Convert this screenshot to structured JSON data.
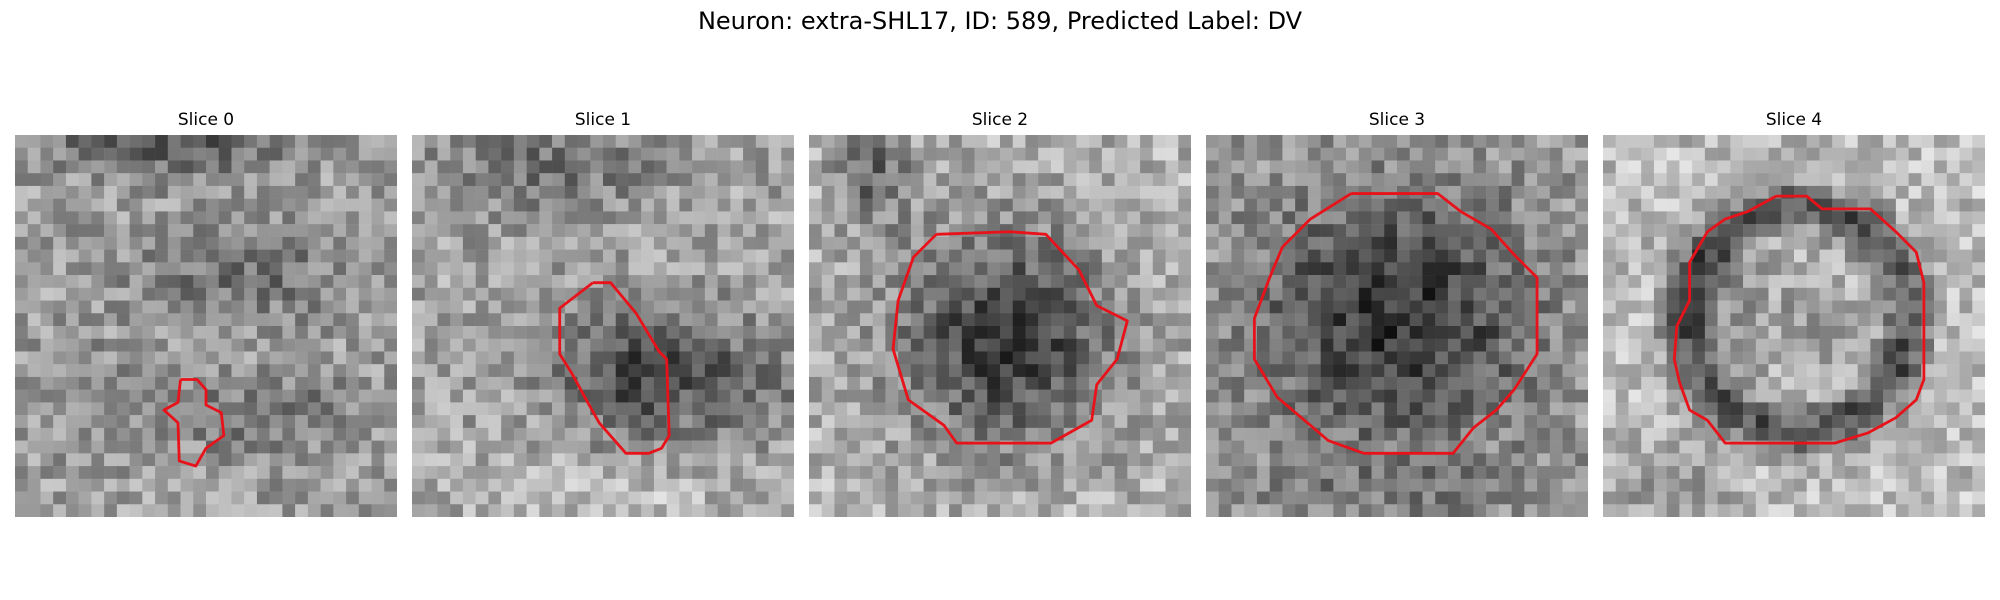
{
  "figure": {
    "title": "Neuron: extra-SHL17, ID: 589, Predicted Label: DV"
  },
  "overlay_color": "#e8121a",
  "panels": [
    {
      "title": "Slice 0",
      "contour": "small-irregular"
    },
    {
      "title": "Slice 1",
      "contour": "elongated-oval"
    },
    {
      "title": "Slice 2",
      "contour": "round"
    },
    {
      "title": "Slice 3",
      "contour": "round-large"
    },
    {
      "title": "Slice 4",
      "contour": "ring-round"
    }
  ]
}
